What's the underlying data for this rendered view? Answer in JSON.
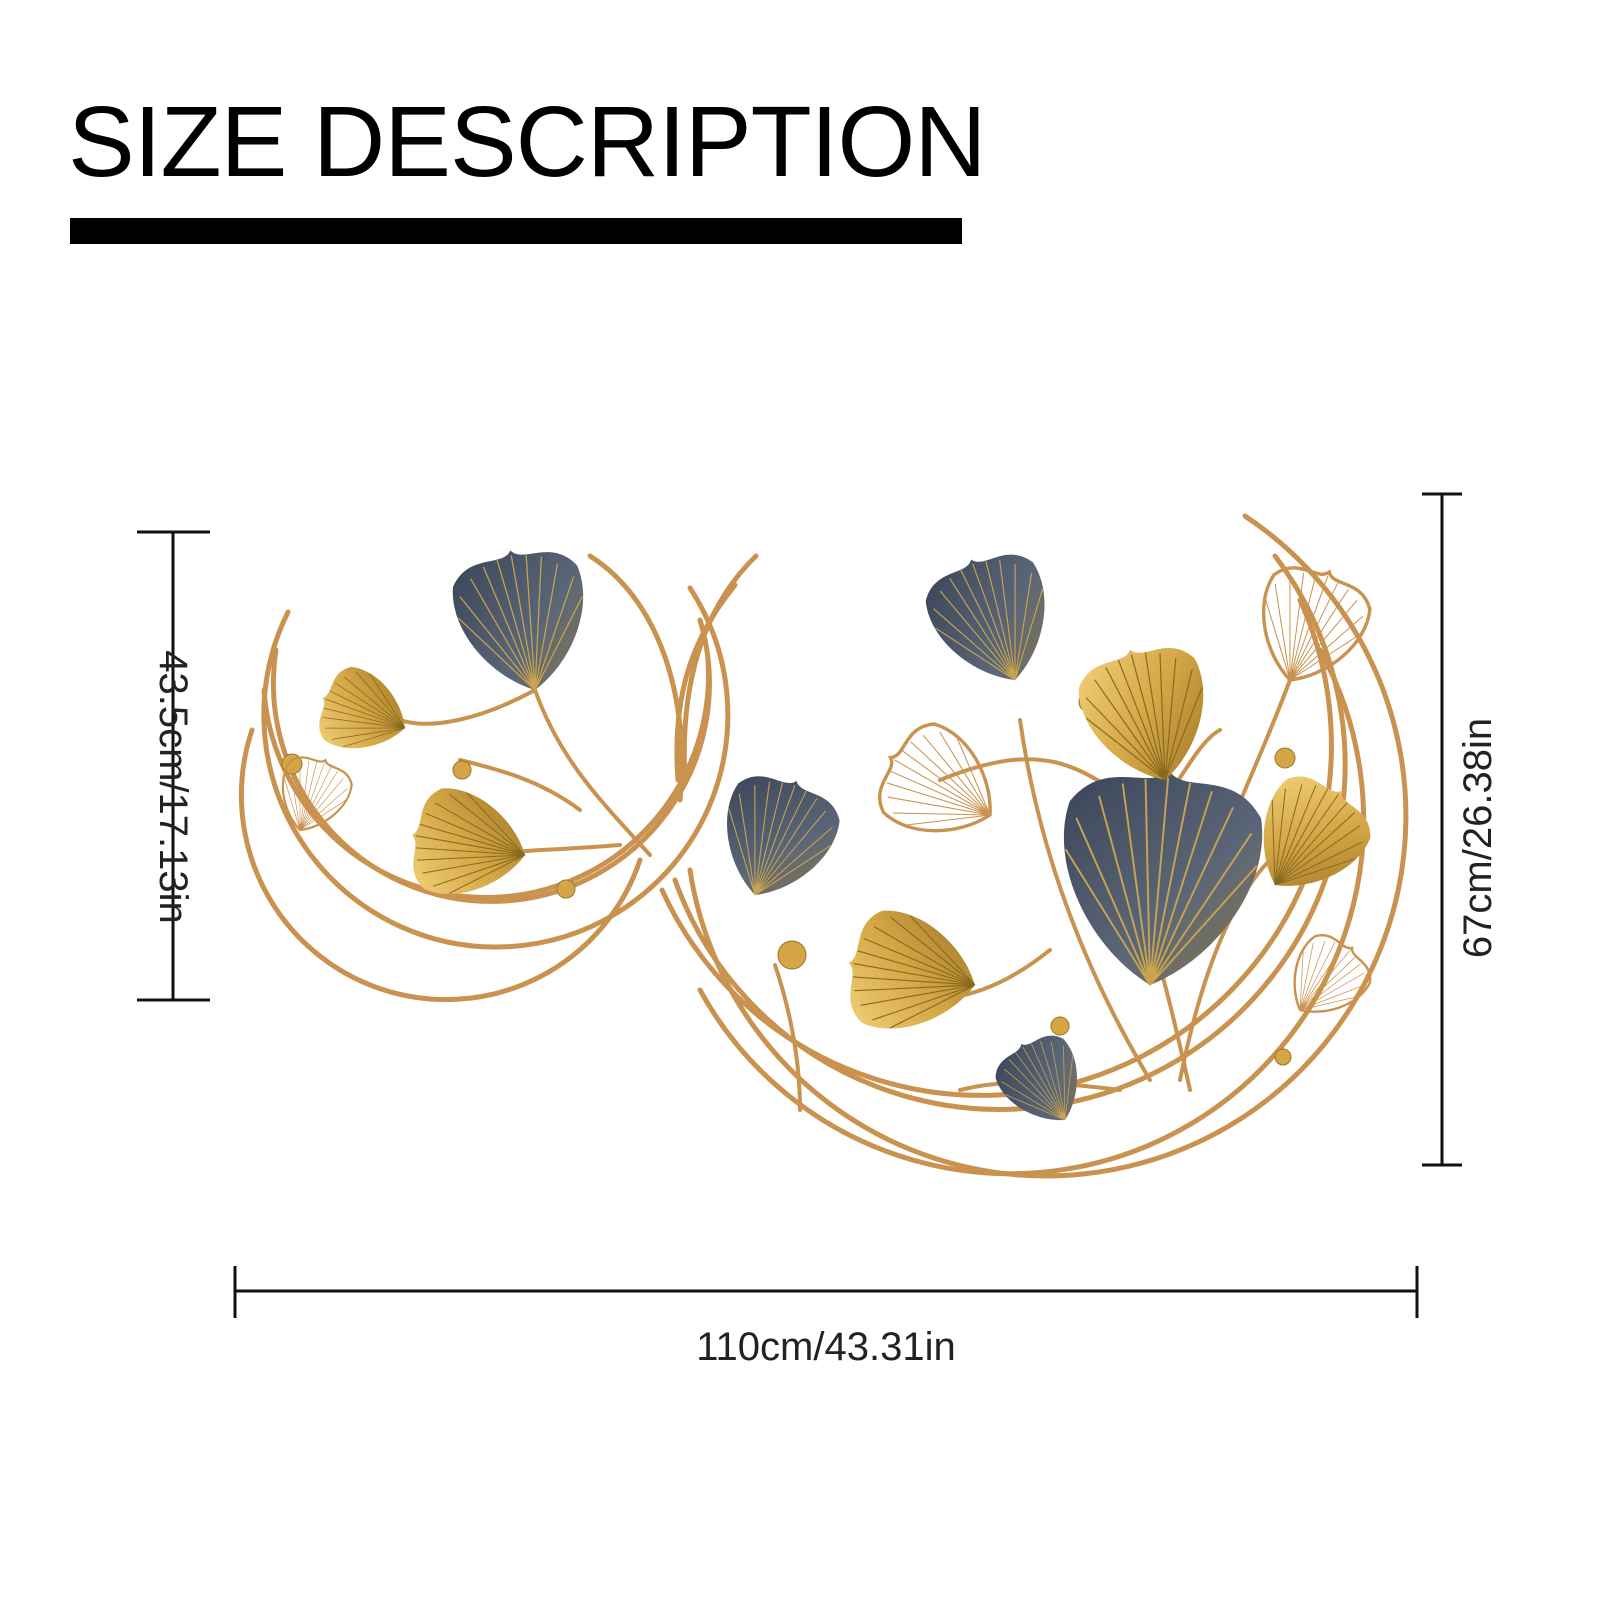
{
  "title": "SIZE DESCRIPTION",
  "dimensions": {
    "left_height": "43.5cm/17.13in",
    "right_height": "67cm/26.38in",
    "width": "110cm/43.31in"
  },
  "colors": {
    "background": "#ffffff",
    "text": "#000000",
    "gold": "#c9924f",
    "gold_light": "#e8c46a",
    "slate": "#4a5566"
  },
  "product": {
    "icon": "ginkgo-leaf-wall-art-icon"
  }
}
